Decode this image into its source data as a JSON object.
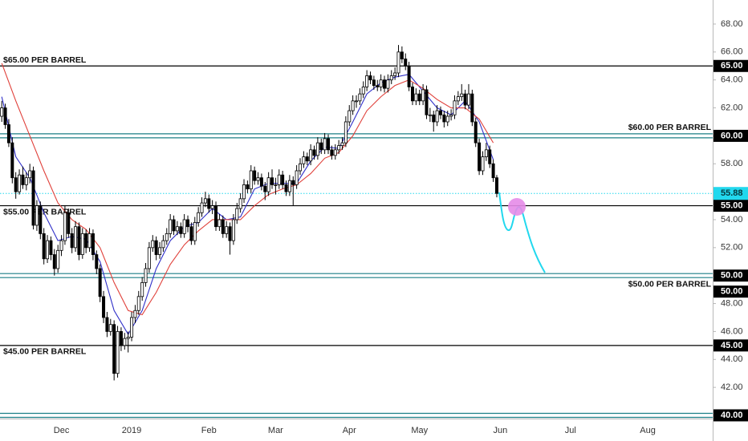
{
  "chart_data": {
    "type": "candlestick",
    "categories": [
      null,
      null,
      null,
      null,
      null,
      null,
      null,
      null,
      null,
      null,
      null,
      null,
      null,
      null,
      null,
      null,
      null,
      "Dec",
      null,
      null,
      null,
      null,
      null,
      null,
      null,
      null,
      null,
      null,
      null,
      null,
      null,
      null,
      null,
      null,
      null,
      null,
      null,
      "2019",
      null,
      null,
      null,
      null,
      null,
      null,
      null,
      null,
      null,
      null,
      null,
      null,
      null,
      null,
      null,
      null,
      null,
      null,
      null,
      null,
      null,
      "Feb",
      null,
      null,
      null,
      null,
      null,
      null,
      null,
      null,
      null,
      null,
      null,
      null,
      null,
      null,
      null,
      null,
      null,
      null,
      "Mar",
      null,
      null,
      null,
      null,
      null,
      null,
      null,
      null,
      null,
      null,
      null,
      null,
      null,
      null,
      null,
      null,
      null,
      null,
      null,
      null,
      "Apr",
      null,
      null,
      null,
      null,
      null,
      null,
      null,
      null,
      null,
      null,
      null,
      null,
      null,
      null,
      null,
      null,
      null,
      null,
      null,
      "May",
      null,
      null,
      null,
      null,
      null,
      null,
      null,
      null,
      null,
      null,
      null,
      null,
      null,
      null,
      null,
      null,
      null,
      null,
      null,
      null,
      null,
      null,
      "Jun",
      null,
      null,
      null,
      null,
      null,
      null,
      null,
      null,
      null,
      null,
      null,
      null,
      null,
      null,
      null,
      null,
      null,
      null,
      null,
      "Jul",
      null,
      null,
      null,
      null,
      null,
      null,
      null,
      null,
      null,
      null,
      null,
      null,
      null,
      null,
      null,
      null,
      null,
      null,
      null,
      null,
      null,
      "Aug",
      null,
      null,
      null,
      null,
      null,
      null,
      null,
      null,
      null,
      null,
      null,
      null,
      null,
      null,
      null,
      null,
      null,
      null
    ],
    "candles": [
      [
        61.4,
        62.5,
        61.0,
        62.0
      ],
      [
        62.0,
        62.3,
        60.5,
        60.8
      ],
      [
        60.8,
        61.2,
        59.2,
        59.5
      ],
      [
        59.5,
        59.9,
        56.6,
        57.0
      ],
      [
        57.0,
        57.4,
        55.5,
        56.0
      ],
      [
        56.0,
        57.6,
        55.8,
        57.2
      ],
      [
        57.2,
        57.8,
        56.2,
        56.5
      ],
      [
        56.5,
        57.4,
        56.1,
        57.0
      ],
      [
        57.0,
        58.0,
        56.6,
        57.5
      ],
      [
        57.5,
        57.8,
        53.3,
        53.6
      ],
      [
        53.6,
        55.4,
        53.2,
        55.0
      ],
      [
        55.0,
        55.3,
        52.6,
        53.0
      ],
      [
        53.0,
        53.4,
        50.8,
        51.2
      ],
      [
        51.2,
        52.9,
        50.9,
        52.5
      ],
      [
        52.5,
        52.8,
        51.1,
        51.5
      ],
      [
        51.5,
        51.9,
        50.0,
        50.5
      ],
      [
        50.5,
        52.2,
        50.2,
        51.8
      ],
      [
        51.8,
        52.9,
        51.4,
        52.5
      ],
      [
        52.5,
        55.0,
        52.2,
        54.5
      ],
      [
        54.5,
        54.8,
        52.7,
        53.0
      ],
      [
        53.0,
        53.4,
        51.6,
        52.0
      ],
      [
        52.0,
        53.9,
        51.7,
        53.5
      ],
      [
        53.5,
        53.8,
        51.1,
        51.5
      ],
      [
        51.5,
        53.4,
        51.2,
        53.0
      ],
      [
        53.0,
        53.3,
        51.6,
        52.0
      ],
      [
        52.0,
        53.4,
        51.7,
        53.0
      ],
      [
        53.0,
        53.3,
        51.1,
        51.5
      ],
      [
        51.5,
        51.8,
        50.1,
        50.5
      ],
      [
        50.5,
        50.8,
        48.1,
        48.5
      ],
      [
        48.5,
        48.9,
        46.6,
        47.0
      ],
      [
        47.0,
        47.4,
        45.6,
        46.0
      ],
      [
        46.0,
        46.9,
        45.7,
        46.5
      ],
      [
        46.5,
        46.8,
        42.5,
        43.0
      ],
      [
        43.0,
        46.4,
        42.7,
        46.0
      ],
      [
        46.0,
        46.3,
        44.6,
        45.0
      ],
      [
        45.0,
        45.9,
        44.7,
        45.5
      ],
      [
        45.5,
        46.0,
        44.5,
        45.6
      ],
      [
        45.6,
        47.4,
        45.3,
        47.0
      ],
      [
        47.0,
        47.9,
        46.6,
        47.5
      ],
      [
        47.5,
        48.9,
        47.2,
        48.5
      ],
      [
        48.5,
        49.9,
        48.2,
        49.5
      ],
      [
        49.5,
        50.9,
        49.2,
        50.5
      ],
      [
        50.5,
        52.4,
        50.2,
        52.0
      ],
      [
        52.0,
        52.9,
        51.7,
        52.5
      ],
      [
        52.5,
        52.8,
        51.1,
        51.5
      ],
      [
        51.5,
        52.4,
        51.2,
        52.0
      ],
      [
        52.0,
        52.9,
        51.7,
        52.5
      ],
      [
        52.5,
        53.4,
        52.2,
        53.0
      ],
      [
        53.0,
        54.4,
        52.7,
        54.0
      ],
      [
        54.0,
        54.3,
        52.9,
        53.2
      ],
      [
        53.2,
        53.9,
        52.9,
        53.5
      ],
      [
        53.5,
        53.8,
        52.7,
        53.0
      ],
      [
        53.0,
        54.4,
        52.7,
        54.0
      ],
      [
        54.0,
        54.3,
        53.1,
        53.5
      ],
      [
        53.5,
        53.8,
        52.2,
        52.5
      ],
      [
        52.5,
        54.2,
        52.2,
        53.8
      ],
      [
        53.8,
        54.9,
        53.5,
        54.5
      ],
      [
        54.5,
        55.6,
        54.2,
        55.2
      ],
      [
        55.2,
        56.0,
        54.9,
        55.5
      ],
      [
        55.5,
        55.8,
        54.5,
        54.8
      ],
      [
        54.8,
        55.4,
        54.4,
        55.0
      ],
      [
        55.0,
        55.3,
        53.2,
        53.5
      ],
      [
        53.5,
        54.4,
        53.2,
        54.0
      ],
      [
        54.0,
        54.3,
        52.7,
        53.0
      ],
      [
        53.0,
        53.9,
        52.7,
        53.5
      ],
      [
        53.5,
        53.8,
        51.5,
        52.5
      ],
      [
        52.5,
        54.4,
        52.2,
        54.0
      ],
      [
        54.0,
        55.2,
        53.7,
        54.8
      ],
      [
        54.8,
        55.9,
        54.5,
        55.5
      ],
      [
        55.5,
        56.9,
        55.2,
        56.5
      ],
      [
        56.5,
        56.8,
        55.9,
        56.2
      ],
      [
        56.2,
        57.9,
        55.9,
        57.5
      ],
      [
        57.5,
        57.8,
        56.5,
        56.8
      ],
      [
        56.8,
        57.4,
        56.5,
        57.0
      ],
      [
        57.0,
        57.3,
        56.1,
        56.4
      ],
      [
        56.4,
        56.7,
        55.4,
        56.0
      ],
      [
        56.0,
        57.4,
        55.7,
        57.0
      ],
      [
        57.0,
        57.6,
        56.2,
        56.5
      ],
      [
        56.5,
        57.0,
        55.8,
        56.5
      ],
      [
        56.5,
        57.6,
        56.2,
        57.2
      ],
      [
        57.2,
        57.5,
        56.2,
        56.5
      ],
      [
        56.5,
        56.8,
        55.7,
        56.0
      ],
      [
        56.0,
        57.2,
        55.7,
        56.8
      ],
      [
        56.8,
        57.1,
        55.0,
        56.5
      ],
      [
        56.5,
        57.9,
        56.2,
        57.5
      ],
      [
        57.5,
        58.4,
        57.2,
        58.0
      ],
      [
        58.0,
        58.9,
        57.7,
        58.5
      ],
      [
        58.5,
        58.8,
        57.9,
        58.2
      ],
      [
        58.2,
        59.4,
        57.9,
        59.0
      ],
      [
        59.0,
        59.3,
        58.3,
        58.6
      ],
      [
        58.6,
        59.9,
        58.3,
        59.5
      ],
      [
        59.5,
        59.8,
        58.7,
        59.0
      ],
      [
        59.0,
        60.2,
        58.7,
        59.8
      ],
      [
        59.8,
        60.1,
        58.7,
        59.0
      ],
      [
        59.0,
        59.3,
        58.3,
        58.6
      ],
      [
        58.6,
        59.4,
        58.3,
        59.0
      ],
      [
        59.0,
        59.7,
        58.7,
        59.3
      ],
      [
        59.3,
        59.9,
        59.0,
        59.5
      ],
      [
        59.5,
        61.4,
        59.2,
        61.0
      ],
      [
        61.0,
        62.2,
        60.7,
        61.8
      ],
      [
        61.8,
        62.9,
        61.5,
        62.5
      ],
      [
        62.5,
        62.9,
        62.0,
        62.5
      ],
      [
        62.5,
        63.4,
        62.2,
        63.0
      ],
      [
        63.0,
        63.9,
        62.7,
        63.5
      ],
      [
        63.5,
        64.7,
        63.2,
        64.3
      ],
      [
        64.3,
        64.6,
        63.7,
        64.0
      ],
      [
        64.0,
        64.3,
        63.3,
        63.6
      ],
      [
        63.6,
        64.0,
        63.2,
        63.5
      ],
      [
        63.5,
        64.4,
        63.2,
        64.0
      ],
      [
        64.0,
        64.3,
        63.1,
        63.4
      ],
      [
        63.4,
        64.4,
        63.1,
        64.0
      ],
      [
        64.0,
        64.7,
        63.7,
        64.3
      ],
      [
        64.3,
        64.9,
        64.0,
        64.5
      ],
      [
        64.5,
        66.5,
        64.2,
        66.0
      ],
      [
        66.0,
        66.4,
        65.2,
        65.5
      ],
      [
        65.5,
        65.9,
        64.7,
        65.0
      ],
      [
        65.0,
        65.3,
        63.2,
        63.5
      ],
      [
        63.5,
        63.8,
        62.2,
        62.5
      ],
      [
        62.5,
        63.4,
        62.2,
        63.0
      ],
      [
        63.0,
        63.3,
        62.2,
        62.5
      ],
      [
        62.5,
        63.7,
        62.2,
        63.3
      ],
      [
        63.3,
        63.6,
        61.2,
        61.5
      ],
      [
        61.5,
        62.0,
        61.0,
        61.5
      ],
      [
        61.5,
        61.8,
        60.3,
        61.0
      ],
      [
        61.0,
        62.2,
        60.7,
        61.8
      ],
      [
        61.8,
        62.1,
        61.2,
        61.5
      ],
      [
        61.5,
        61.8,
        60.6,
        61.0
      ],
      [
        61.0,
        61.8,
        60.7,
        61.4
      ],
      [
        61.4,
        61.9,
        61.1,
        61.5
      ],
      [
        61.5,
        62.9,
        61.2,
        62.5
      ],
      [
        62.5,
        63.2,
        62.2,
        62.8
      ],
      [
        62.8,
        63.7,
        62.5,
        63.0
      ],
      [
        63.0,
        63.3,
        61.9,
        62.2
      ],
      [
        62.2,
        63.7,
        61.9,
        63.0
      ],
      [
        63.0,
        63.3,
        60.7,
        61.0
      ],
      [
        61.0,
        61.3,
        59.2,
        59.5
      ],
      [
        59.5,
        59.8,
        57.2,
        57.5
      ],
      [
        57.5,
        58.9,
        57.2,
        58.5
      ],
      [
        58.5,
        59.5,
        58.2,
        59.0
      ],
      [
        59.0,
        59.3,
        57.7,
        58.0
      ],
      [
        58.0,
        58.3,
        56.7,
        57.0
      ],
      [
        57.0,
        57.2,
        55.6,
        55.88
      ],
      null,
      null,
      null,
      null,
      null,
      null,
      null,
      null,
      null,
      null,
      null,
      null,
      null,
      null,
      null,
      null,
      null,
      null,
      null,
      null,
      null,
      null,
      null,
      null,
      null,
      null,
      null,
      null,
      null,
      null,
      null,
      null,
      null,
      null,
      null,
      null,
      null,
      null,
      null,
      null,
      null,
      null,
      null,
      null,
      null,
      null,
      null,
      null,
      null,
      null,
      null,
      null,
      null,
      null,
      null,
      null,
      null,
      null,
      null,
      null,
      null
    ],
    "up_color": "#ffffff",
    "down_color": "#000000",
    "moving_averages": [
      {
        "color": "#2f2fc8",
        "x": [
          0,
          4,
          8,
          12,
          16,
          20,
          24,
          28,
          32,
          36,
          40,
          44,
          48,
          52,
          56,
          60,
          64,
          68,
          72,
          76,
          80,
          84,
          88,
          92,
          96,
          100,
          104,
          108,
          112,
          116,
          120,
          124,
          128,
          132,
          136,
          140
        ],
        "values": [
          62.8,
          58.5,
          57.0,
          54.5,
          52.5,
          52.8,
          52.6,
          51.0,
          47.5,
          45.8,
          47.5,
          50.5,
          52.5,
          53.5,
          53.8,
          54.8,
          54.0,
          54.2,
          56.2,
          56.6,
          56.6,
          56.6,
          58.2,
          59.2,
          59.1,
          61.0,
          63.0,
          63.8,
          64.2,
          64.4,
          63.2,
          62.0,
          61.5,
          62.5,
          61.0,
          58.3
        ]
      },
      {
        "color": "#e0403a",
        "x": [
          0,
          4,
          8,
          12,
          16,
          20,
          24,
          28,
          32,
          36,
          40,
          44,
          48,
          52,
          56,
          60,
          64,
          68,
          72,
          76,
          80,
          84,
          88,
          92,
          96,
          100,
          104,
          108,
          112,
          116,
          120,
          124,
          128,
          132,
          136,
          140
        ],
        "values": [
          65.2,
          62.5,
          60.0,
          57.5,
          55.2,
          54.0,
          53.3,
          52.0,
          49.5,
          47.5,
          47.2,
          48.8,
          50.8,
          52.2,
          53.2,
          54.0,
          54.0,
          54.0,
          55.0,
          55.8,
          56.2,
          56.5,
          57.3,
          58.4,
          58.8,
          60.0,
          61.8,
          62.8,
          63.6,
          64.0,
          63.4,
          62.6,
          62.0,
          62.0,
          61.2,
          59.5
        ]
      }
    ],
    "levels": [
      {
        "value": 65,
        "text": "$65.00 PER BARREL",
        "side": "left",
        "place": "above",
        "color": "#000000",
        "double": false,
        "labels": [
          "65.00"
        ]
      },
      {
        "value": 60,
        "text": "$60.00 PER BARREL",
        "side": "right",
        "place": "above",
        "color": "#1b7f86",
        "double": true,
        "labels": [
          "60.00"
        ]
      },
      {
        "value": 55,
        "text": "$55.00 PER BARREL",
        "side": "left",
        "place": "below",
        "color": "#000000",
        "double": false,
        "labels": [
          "55.00"
        ]
      },
      {
        "value": 50,
        "text": "$50.00 PER BARREL",
        "side": "right",
        "place": "below",
        "color": "#1b7f86",
        "double": true,
        "labels": [
          "50.00",
          "50.00"
        ]
      },
      {
        "value": 45,
        "text": "$45.00 PER BARREL",
        "side": "left",
        "place": "below",
        "color": "#000000",
        "double": false,
        "labels": [
          "45.00"
        ]
      },
      {
        "value": 40,
        "color": "#1b7f86",
        "double": true,
        "labels": [
          "40.00"
        ]
      }
    ],
    "price_line_color": "#22d8ee",
    "ylim": [
      39.77,
      69.72
    ],
    "yticks": [
      {
        "value": 68,
        "label": "68.00"
      },
      {
        "value": 66,
        "label": "66.00"
      },
      {
        "value": 64,
        "label": "64.00"
      },
      {
        "value": 62,
        "label": "62.00"
      },
      {
        "value": 58,
        "label": "58.00"
      },
      {
        "value": 54,
        "label": "54.00"
      },
      {
        "value": 52,
        "label": "52.00"
      },
      {
        "value": 48,
        "label": "48.00"
      },
      {
        "value": 46,
        "label": "46.00"
      },
      {
        "value": 44,
        "label": "44.00"
      },
      {
        "value": 42,
        "label": "42.00"
      }
    ],
    "grid": false
  }
}
